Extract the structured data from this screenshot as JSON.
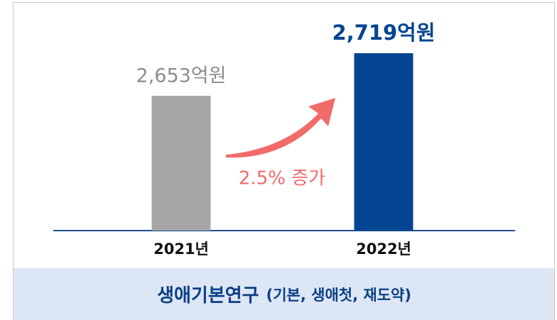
{
  "chart_data": {
    "type": "bar",
    "categories": [
      "2021년",
      "2022년"
    ],
    "values": [
      2653,
      2719
    ],
    "value_labels": [
      "2,653억원",
      "2,719억원"
    ],
    "colors": [
      "#a6a6a6",
      "#034591"
    ],
    "label_colors": [
      "#8c8c8c",
      "#034591"
    ],
    "ylim": [
      2444,
      2730
    ],
    "annotation": "2.5% 증가",
    "caption": "생애기본연구",
    "caption_note": "(기본, 생애첫, 재도약)"
  }
}
